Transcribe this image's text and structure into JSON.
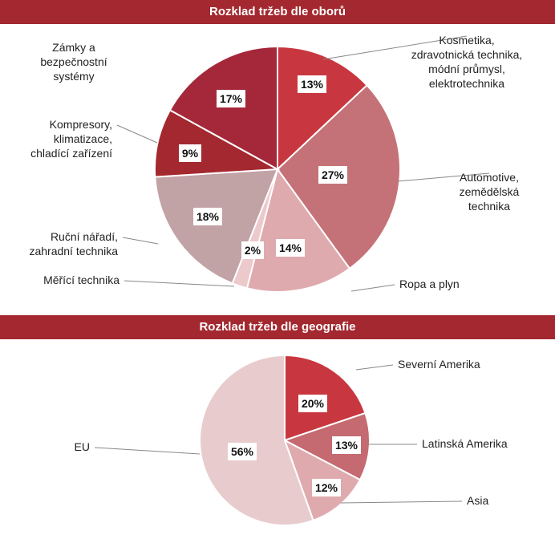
{
  "chart_data": [
    {
      "type": "pie",
      "title": "Rozklad tržeb dle oborů",
      "slices": [
        {
          "label": [
            "Kosmetika,",
            "zdravotnická technika,",
            "módní průmysl,",
            "elektrotechnika"
          ],
          "value": 13,
          "display": "13%",
          "color": "#c8373f"
        },
        {
          "label": [
            "Automotive,",
            "zemědělská",
            "technika"
          ],
          "value": 27,
          "display": "27%",
          "color": "#c47277"
        },
        {
          "label": [
            "Ropa a plyn"
          ],
          "value": 14,
          "display": "14%",
          "color": "#dfaaae"
        },
        {
          "label": [
            "Měřící technika"
          ],
          "value": 2,
          "display": "2%",
          "color": "#ecc9cb"
        },
        {
          "label": [
            "Ruční nářadí,",
            "zahradní technika"
          ],
          "value": 18,
          "display": "18%",
          "color": "#c1a2a5"
        },
        {
          "label": [
            "Kompresory,",
            "klimatizace,",
            "chladící zařízení"
          ],
          "value": 9,
          "display": "9%",
          "color": "#a4282f"
        },
        {
          "label": [
            "Zámky a",
            "bezpečnostní",
            "systémy"
          ],
          "value": 17,
          "display": "17%",
          "color": "#a4283a"
        }
      ]
    },
    {
      "type": "pie",
      "title": "Rozklad tržeb dle geografie",
      "slices": [
        {
          "label": [
            "Severní  Amerika"
          ],
          "value": 20,
          "display": "20%",
          "color": "#c8373f"
        },
        {
          "label": [
            "Latinská Amerika"
          ],
          "value": 13,
          "display": "13%",
          "color": "#c46a70"
        },
        {
          "label": [
            "Asia"
          ],
          "value": 12,
          "display": "12%",
          "color": "#dfaaae"
        },
        {
          "label": [
            "EU"
          ],
          "value": 56,
          "display": "56%",
          "color": "#e8cccd"
        }
      ]
    }
  ]
}
